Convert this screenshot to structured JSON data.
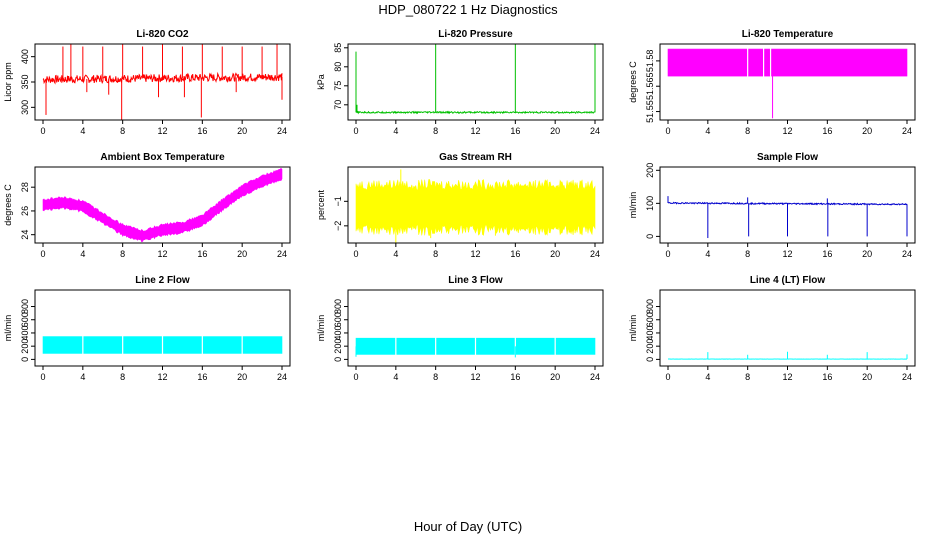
{
  "figure": {
    "title": "HDP_080722  1 Hz Diagnostics",
    "xlabel": "Hour of Day (UTC)"
  },
  "chart_data": [
    {
      "id": "co2",
      "type": "line",
      "title": "Li-820 CO2",
      "ylabel": "Licor ppm",
      "color": "#ff0000",
      "xlim": [
        0,
        24
      ],
      "xticks": [
        0,
        4,
        8,
        12,
        16,
        20,
        24
      ],
      "ylim": [
        275,
        425
      ],
      "yticks": [
        300,
        350,
        400
      ],
      "base": 355,
      "trend": 5,
      "noise": 8,
      "spikes": [
        {
          "x": 0.3,
          "y": 285
        },
        {
          "x": 2.0,
          "y": 420
        },
        {
          "x": 2.8,
          "y": 425
        },
        {
          "x": 4.0,
          "y": 420
        },
        {
          "x": 4.4,
          "y": 330
        },
        {
          "x": 6.0,
          "y": 420
        },
        {
          "x": 6.6,
          "y": 325
        },
        {
          "x": 7.9,
          "y": 275
        },
        {
          "x": 8.0,
          "y": 425
        },
        {
          "x": 10.0,
          "y": 420
        },
        {
          "x": 11.6,
          "y": 320
        },
        {
          "x": 12.0,
          "y": 425
        },
        {
          "x": 14.0,
          "y": 420
        },
        {
          "x": 14.2,
          "y": 320
        },
        {
          "x": 15.9,
          "y": 280
        },
        {
          "x": 16.0,
          "y": 425
        },
        {
          "x": 18.0,
          "y": 420
        },
        {
          "x": 19.4,
          "y": 330
        },
        {
          "x": 20.0,
          "y": 420
        },
        {
          "x": 22.0,
          "y": 420
        },
        {
          "x": 23.5,
          "y": 425
        },
        {
          "x": 24.0,
          "y": 315
        }
      ]
    },
    {
      "id": "pressure",
      "type": "line",
      "title": "Li-820 Pressure",
      "ylabel": "kPa",
      "color": "#00c000",
      "xlim": [
        0,
        24
      ],
      "xticks": [
        0,
        4,
        8,
        12,
        16,
        20,
        24
      ],
      "ylim": [
        66,
        86
      ],
      "yticks": [
        70,
        75,
        80,
        85
      ],
      "base": 68,
      "trend": 0,
      "noise": 0.2,
      "spikes": [
        {
          "x": 0.0,
          "y": 84
        },
        {
          "x": 0.1,
          "y": 70
        },
        {
          "x": 8.0,
          "y": 86
        },
        {
          "x": 16.0,
          "y": 86
        },
        {
          "x": 24.0,
          "y": 86
        }
      ]
    },
    {
      "id": "licor_temp",
      "type": "band",
      "title": "Li-820 Temperature",
      "ylabel": "degrees C",
      "color": "#ff00ff",
      "xlim": [
        0,
        24
      ],
      "xticks": [
        0,
        4,
        8,
        12,
        16,
        20,
        24
      ],
      "ylim": [
        51.545,
        51.59
      ],
      "yticks": [
        51.55,
        51.565,
        51.58
      ],
      "band_low": 51.571,
      "band_high": 51.587,
      "gaps": [
        8.0,
        9.6,
        10.3
      ],
      "spikes": [
        {
          "x": 10.5,
          "y": 51.546
        }
      ]
    },
    {
      "id": "box_temp",
      "type": "band",
      "title": "Ambient Box Temperature",
      "ylabel": "degrees C",
      "color": "#ff00ff",
      "xlim": [
        0,
        24
      ],
      "xticks": [
        0,
        4,
        8,
        12,
        16,
        20,
        24
      ],
      "ylim": [
        23.3,
        29.7
      ],
      "yticks": [
        24,
        26,
        28
      ],
      "curve": [
        {
          "x": 0,
          "y": 26.5
        },
        {
          "x": 2,
          "y": 26.7
        },
        {
          "x": 4,
          "y": 26.4
        },
        {
          "x": 6,
          "y": 25.4
        },
        {
          "x": 8,
          "y": 24.4
        },
        {
          "x": 10,
          "y": 23.9
        },
        {
          "x": 12,
          "y": 24.4
        },
        {
          "x": 14,
          "y": 24.6
        },
        {
          "x": 16,
          "y": 25.2
        },
        {
          "x": 18,
          "y": 26.5
        },
        {
          "x": 20,
          "y": 27.7
        },
        {
          "x": 22,
          "y": 28.5
        },
        {
          "x": 24,
          "y": 29.1
        }
      ],
      "width": 0.9,
      "gaps": [],
      "spikes": []
    },
    {
      "id": "rh",
      "type": "band",
      "title": "Gas Stream RH",
      "ylabel": "percent",
      "color": "#ffff00",
      "xlim": [
        0,
        24
      ],
      "xticks": [
        0,
        4,
        8,
        12,
        16,
        20,
        24
      ],
      "ylim": [
        -2.7,
        0.4
      ],
      "yticks": [
        -2,
        -1
      ],
      "curve": [
        {
          "x": 0,
          "y": -1.25
        },
        {
          "x": 24,
          "y": -1.25
        }
      ],
      "width": 1.9,
      "gaps": [],
      "spikes": [
        {
          "x": 4.0,
          "y": -2.7
        },
        {
          "x": 7.5,
          "y": -2.5
        },
        {
          "x": 14.0,
          "y": -2.4
        },
        {
          "x": 22.0,
          "y": -2.3
        },
        {
          "x": 4.5,
          "y": 0.3
        }
      ]
    },
    {
      "id": "sample_flow",
      "type": "line",
      "title": "Sample Flow",
      "ylabel": "ml/min",
      "color": "#0000cc",
      "xlim": [
        0,
        24
      ],
      "xticks": [
        0,
        4,
        8,
        12,
        16,
        20,
        24
      ],
      "ylim": [
        -20,
        210
      ],
      "yticks": [
        0,
        100,
        200
      ],
      "base": 101,
      "trend": -4,
      "noise": 2,
      "spikes": [
        {
          "x": 0.0,
          "y": 122
        },
        {
          "x": 4.0,
          "y": -5
        },
        {
          "x": 8.0,
          "y": 118
        },
        {
          "x": 8.1,
          "y": 0
        },
        {
          "x": 12.0,
          "y": 0
        },
        {
          "x": 16.0,
          "y": 115
        },
        {
          "x": 16.05,
          "y": 0
        },
        {
          "x": 20.0,
          "y": 0
        },
        {
          "x": 24.0,
          "y": 0
        }
      ]
    },
    {
      "id": "line2_flow",
      "type": "band",
      "title": "Line 2 Flow",
      "ylabel": "ml/min",
      "color": "#00ffff",
      "xlim": [
        0,
        24
      ],
      "xticks": [
        0,
        4,
        8,
        12,
        16,
        20,
        24
      ],
      "ylim": [
        -100,
        1050
      ],
      "yticks": [
        0,
        200,
        400,
        600,
        800
      ],
      "band_low": 90,
      "band_high": 345,
      "gaps": [
        4.0,
        8.0,
        12.0,
        16.0,
        20.0
      ],
      "spikes": []
    },
    {
      "id": "line3_flow",
      "type": "band",
      "title": "Line 3 Flow",
      "ylabel": "ml/min",
      "color": "#00ffff",
      "xlim": [
        0,
        24
      ],
      "xticks": [
        0,
        4,
        8,
        12,
        16,
        20,
        24
      ],
      "ylim": [
        -100,
        1050
      ],
      "yticks": [
        0,
        200,
        400,
        600,
        800
      ],
      "band_low": 75,
      "band_high": 320,
      "gaps": [
        4.0,
        8.0,
        12.0,
        16.0,
        20.0
      ],
      "spikes": [
        {
          "x": 0.0,
          "y": 40
        },
        {
          "x": 16.0,
          "y": 30
        }
      ]
    },
    {
      "id": "line4_flow",
      "type": "line",
      "title": "Line 4 (LT) Flow",
      "ylabel": "ml/min",
      "color": "#00ffff",
      "xlim": [
        0,
        24
      ],
      "xticks": [
        0,
        4,
        8,
        12,
        16,
        20,
        24
      ],
      "ylim": [
        -100,
        1050
      ],
      "yticks": [
        0,
        200,
        400,
        600,
        800
      ],
      "base": 5,
      "trend": 0,
      "noise": 1,
      "spikes": [
        {
          "x": 4.0,
          "y": 110
        },
        {
          "x": 8.0,
          "y": 70
        },
        {
          "x": 12.0,
          "y": 115
        },
        {
          "x": 16.0,
          "y": 70
        },
        {
          "x": 20.0,
          "y": 110
        },
        {
          "x": 24.0,
          "y": 75
        }
      ]
    }
  ]
}
